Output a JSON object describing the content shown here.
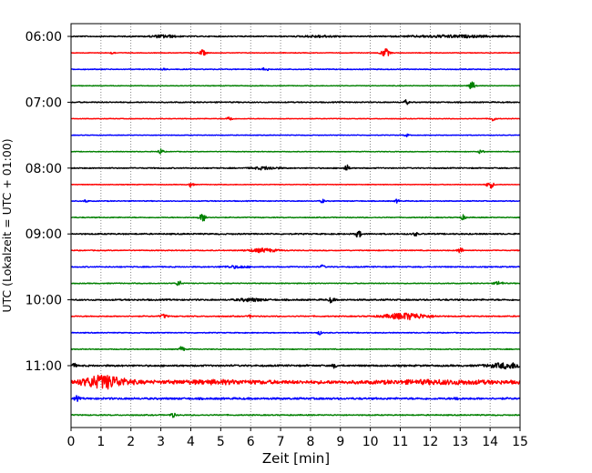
{
  "chart_data": {
    "type": "line",
    "title": "",
    "xlabel": "Zeit  [min]",
    "ylabel": "UTC (Lokalzeit = UTC + 01:00)",
    "xlim": [
      0,
      15
    ],
    "x_ticks": [
      0,
      1,
      2,
      3,
      4,
      5,
      6,
      7,
      8,
      9,
      10,
      11,
      12,
      13,
      14,
      15
    ],
    "x_tick_labels": [
      "0",
      "1",
      "2",
      "3",
      "4",
      "5",
      "6",
      "7",
      "8",
      "9",
      "10",
      "11",
      "12",
      "13",
      "14",
      "15"
    ],
    "y_tick_labels": [
      "06:00",
      "07:00",
      "08:00",
      "09:00",
      "10:00",
      "11:00"
    ],
    "vertical_grid": true,
    "grid_style": "dotted",
    "colors": [
      "#000000",
      "#ff0000",
      "#0000ff",
      "#008000"
    ],
    "series": [
      {
        "start": "06:00",
        "color": "#000000",
        "noise": 0.5,
        "events": [
          [
            12.7,
            1.0,
            1.2
          ],
          [
            3.1,
            0.3,
            1.5
          ],
          [
            8.3,
            0.4,
            1.0
          ]
        ]
      },
      {
        "start": "06:15",
        "color": "#ff0000",
        "noise": 0.3,
        "events": [
          [
            4.4,
            0.08,
            3.0
          ],
          [
            10.5,
            0.1,
            4.5
          ],
          [
            1.4,
            0.05,
            1.5
          ]
        ]
      },
      {
        "start": "06:30",
        "color": "#0000ff",
        "noise": 0.4,
        "events": [
          [
            6.5,
            0.06,
            3.0
          ],
          [
            3.1,
            0.05,
            1.5
          ]
        ]
      },
      {
        "start": "06:45",
        "color": "#008000",
        "noise": 0.3,
        "events": [
          [
            13.4,
            0.08,
            4.0
          ]
        ]
      },
      {
        "start": "07:00",
        "color": "#000000",
        "noise": 0.5,
        "events": [
          [
            11.2,
            0.05,
            2.5
          ]
        ]
      },
      {
        "start": "07:15",
        "color": "#ff0000",
        "noise": 0.3,
        "events": [
          [
            5.3,
            0.06,
            3.0
          ],
          [
            14.1,
            0.06,
            2.5
          ]
        ]
      },
      {
        "start": "07:30",
        "color": "#0000ff",
        "noise": 0.3,
        "events": [
          [
            11.2,
            0.05,
            1.5
          ]
        ]
      },
      {
        "start": "07:45",
        "color": "#008000",
        "noise": 0.3,
        "events": [
          [
            3.0,
            0.06,
            3.0
          ],
          [
            13.7,
            0.06,
            2.5
          ]
        ]
      },
      {
        "start": "08:00",
        "color": "#000000",
        "noise": 0.5,
        "events": [
          [
            9.2,
            0.06,
            3.5
          ],
          [
            6.5,
            0.3,
            1.5
          ]
        ]
      },
      {
        "start": "08:15",
        "color": "#ff0000",
        "noise": 0.3,
        "events": [
          [
            4.0,
            0.06,
            2.5
          ],
          [
            14.0,
            0.08,
            4.0
          ]
        ]
      },
      {
        "start": "08:30",
        "color": "#0000ff",
        "noise": 0.4,
        "events": [
          [
            8.4,
            0.05,
            2.0
          ],
          [
            10.9,
            0.05,
            2.0
          ],
          [
            0.5,
            0.05,
            1.5
          ]
        ]
      },
      {
        "start": "08:45",
        "color": "#008000",
        "noise": 0.4,
        "events": [
          [
            4.4,
            0.08,
            4.0
          ],
          [
            13.1,
            0.06,
            2.5
          ]
        ]
      },
      {
        "start": "09:00",
        "color": "#000000",
        "noise": 0.6,
        "events": [
          [
            9.6,
            0.06,
            4.0
          ],
          [
            11.5,
            0.05,
            2.0
          ]
        ]
      },
      {
        "start": "09:15",
        "color": "#ff0000",
        "noise": 0.4,
        "events": [
          [
            6.4,
            0.35,
            2.0
          ],
          [
            13.0,
            0.06,
            3.5
          ]
        ]
      },
      {
        "start": "09:30",
        "color": "#0000ff",
        "noise": 0.5,
        "events": [
          [
            8.4,
            0.05,
            2.0
          ],
          [
            5.5,
            0.3,
            1.2
          ]
        ]
      },
      {
        "start": "09:45",
        "color": "#008000",
        "noise": 0.4,
        "events": [
          [
            3.6,
            0.06,
            3.0
          ],
          [
            14.3,
            0.1,
            2.0
          ]
        ]
      },
      {
        "start": "10:00",
        "color": "#000000",
        "noise": 0.7,
        "events": [
          [
            8.7,
            0.06,
            3.0
          ],
          [
            6.0,
            0.3,
            1.5
          ]
        ]
      },
      {
        "start": "10:15",
        "color": "#ff0000",
        "noise": 0.5,
        "events": [
          [
            11.2,
            0.5,
            3.5
          ],
          [
            3.1,
            0.08,
            2.0
          ],
          [
            6.0,
            0.05,
            1.5
          ]
        ]
      },
      {
        "start": "10:30",
        "color": "#0000ff",
        "noise": 0.4,
        "events": [
          [
            8.3,
            0.05,
            2.0
          ]
        ]
      },
      {
        "start": "10:45",
        "color": "#008000",
        "noise": 0.4,
        "events": [
          [
            3.7,
            0.06,
            3.0
          ]
        ]
      },
      {
        "start": "11:00",
        "color": "#000000",
        "noise": 0.8,
        "events": [
          [
            14.6,
            0.45,
            2.8
          ],
          [
            8.8,
            0.05,
            2.0
          ],
          [
            0.1,
            0.05,
            2.0
          ]
        ]
      },
      {
        "start": "11:15",
        "color": "#ff0000",
        "noise": 1.6,
        "events": [
          [
            1.1,
            0.5,
            6.5
          ],
          [
            12.4,
            1.2,
            1.2
          ],
          [
            5.0,
            1.0,
            1.0
          ]
        ]
      },
      {
        "start": "11:30",
        "color": "#0000ff",
        "noise": 0.9,
        "events": [
          [
            0.2,
            0.05,
            2.5
          ],
          [
            12.9,
            0.05,
            2.0
          ]
        ]
      },
      {
        "start": "11:45",
        "color": "#008000",
        "noise": 0.5,
        "events": [
          [
            3.4,
            0.06,
            2.5
          ]
        ]
      }
    ]
  }
}
